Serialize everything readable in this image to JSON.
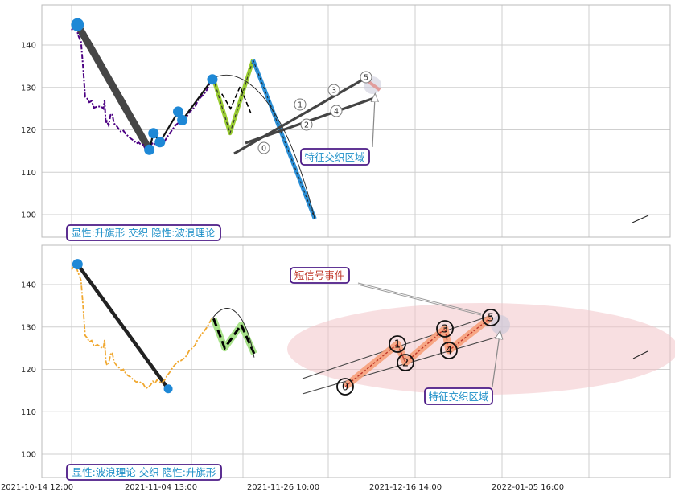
{
  "chart_data": [
    {
      "type": "line",
      "panel": "top",
      "ylim": [
        94,
        149
      ],
      "y_ticks": [
        100,
        110,
        120,
        130,
        140
      ],
      "annotation_box": "显性:升旗形 交织 隐性:波浪理论",
      "callout": "特征交织区域",
      "wave_labels": [
        "0",
        "1",
        "2",
        "3",
        "4",
        "5"
      ],
      "series": [
        {
          "role": "price",
          "color": "#4b0082",
          "values": [
            [
              0.0,
              143.5
            ],
            [
              0.6,
              145.0
            ],
            [
              1.2,
              142.0
            ],
            [
              1.6,
              140.8
            ],
            [
              2.0,
              134.0
            ],
            [
              2.3,
              127.8
            ],
            [
              2.6,
              127.5
            ],
            [
              3.0,
              126.5
            ],
            [
              3.4,
              126.8
            ],
            [
              3.8,
              125.2
            ],
            [
              4.4,
              125.5
            ],
            [
              5.0,
              125.5
            ],
            [
              5.4,
              125.0
            ],
            [
              5.6,
              127.0
            ],
            [
              5.8,
              121.5
            ],
            [
              6.0,
              122.0
            ],
            [
              6.3,
              121.0
            ],
            [
              6.6,
              123.5
            ],
            [
              6.9,
              123.8
            ],
            [
              7.2,
              121.5
            ],
            [
              7.6,
              121.0
            ],
            [
              8.0,
              120.2
            ],
            [
              8.4,
              119.5
            ],
            [
              8.8,
              119.8
            ],
            [
              9.2,
              119.0
            ],
            [
              9.6,
              118.5
            ],
            [
              10.0,
              118.0
            ],
            [
              10.5,
              117.5
            ],
            [
              11.0,
              116.8
            ],
            [
              11.4,
              117.0
            ],
            [
              11.8,
              116.5
            ],
            [
              12.2,
              116.5
            ],
            [
              12.6,
              115.2
            ],
            [
              13.0,
              115.8
            ],
            [
              13.4,
              116.2
            ],
            [
              13.8,
              117.0
            ],
            [
              14.2,
              116.5
            ],
            [
              14.5,
              117.2
            ],
            [
              14.8,
              117.0
            ],
            [
              15.0,
              117.0
            ],
            [
              15.3,
              116.8
            ],
            [
              15.8,
              117.3
            ],
            [
              16.2,
              118.3
            ],
            [
              16.6,
              119.0
            ],
            [
              17.2,
              120.2
            ],
            [
              17.6,
              121.0
            ],
            [
              18.0,
              121.5
            ],
            [
              18.5,
              121.8
            ],
            [
              19.0,
              122.2
            ],
            [
              19.5,
              123.0
            ],
            [
              20.0,
              124.2
            ],
            [
              20.5,
              124.8
            ],
            [
              21.0,
              125.5
            ],
            [
              21.4,
              126.8
            ],
            [
              22.0,
              127.8
            ],
            [
              22.5,
              128.5
            ],
            [
              23.0,
              129.5
            ],
            [
              23.4,
              130.8
            ],
            [
              23.8,
              131.8
            ],
            [
              24.2,
              131.2
            ]
          ]
        },
        {
          "role": "forecast_dashed",
          "color": "#000000",
          "values": [
            [
              25.5,
              128.5
            ],
            [
              27.0,
              125.0
            ],
            [
              28.6,
              130.2
            ],
            [
              30.5,
              123.7
            ]
          ]
        },
        {
          "role": "forecast_green",
          "color": "#9acd32",
          "values": [
            [
              24.1,
              132.0
            ],
            [
              26.9,
              119.2
            ],
            [
              30.8,
              136.5
            ]
          ]
        },
        {
          "role": "forecast_blue",
          "color": "#2b8fd6",
          "values": [
            [
              30.8,
              136.5
            ],
            [
              41.3,
              99.0
            ]
          ]
        }
      ],
      "pivots": [
        [
          1.0,
          144.8
        ],
        [
          13.2,
          115.3
        ],
        [
          13.9,
          119.2
        ],
        [
          15.0,
          117.1
        ],
        [
          18.1,
          124.3
        ],
        [
          18.8,
          122.3
        ],
        [
          23.9,
          131.9
        ]
      ],
      "arc": {
        "from": [
          24.0,
          132.2
        ],
        "apex": [
          27.5,
          132.5
        ],
        "to": [
          41.3,
          99.0
        ]
      }
    },
    {
      "type": "line",
      "panel": "bottom",
      "ylim": [
        94,
        149
      ],
      "y_ticks": [
        100,
        110,
        120,
        130,
        140
      ],
      "x_tick_labels": [
        "2021-10-14 12:00",
        "2021-11-04 13:00",
        "2021-11-26 10:00",
        "2021-12-16 14:00",
        "2022-01-05 16:00"
      ],
      "annotation_box": "显性:波浪理论 交织 隐性:升旗形",
      "callout": "特征交织区域",
      "callout2": "短信号事件",
      "wave_labels": [
        "0",
        "1",
        "2",
        "3",
        "4",
        "5"
      ],
      "series": [
        {
          "role": "price",
          "color": "#f0a830",
          "values": [
            [
              0.0,
              143.5
            ],
            [
              0.6,
              144.8
            ],
            [
              1.2,
              142.5
            ],
            [
              1.6,
              141.0
            ],
            [
              2.0,
              134.0
            ],
            [
              2.3,
              128.0
            ],
            [
              2.6,
              127.5
            ],
            [
              3.0,
              126.5
            ],
            [
              3.4,
              126.8
            ],
            [
              3.8,
              125.5
            ],
            [
              4.4,
              125.8
            ],
            [
              5.0,
              125.2
            ],
            [
              5.4,
              125.0
            ],
            [
              5.6,
              127.0
            ],
            [
              5.8,
              122.0
            ],
            [
              6.0,
              121.0
            ],
            [
              6.3,
              121.5
            ],
            [
              6.6,
              123.5
            ],
            [
              6.9,
              124.0
            ],
            [
              7.2,
              121.8
            ],
            [
              7.6,
              121.0
            ],
            [
              8.0,
              120.5
            ],
            [
              8.4,
              119.8
            ],
            [
              8.8,
              120.0
            ],
            [
              9.2,
              119.0
            ],
            [
              9.6,
              118.5
            ],
            [
              10.0,
              118.2
            ],
            [
              10.5,
              117.5
            ],
            [
              11.0,
              117.0
            ],
            [
              11.4,
              117.2
            ],
            [
              11.8,
              116.8
            ],
            [
              12.2,
              116.5
            ],
            [
              12.6,
              115.5
            ],
            [
              13.0,
              115.8
            ],
            [
              13.4,
              116.3
            ],
            [
              13.8,
              117.2
            ],
            [
              14.2,
              116.8
            ],
            [
              14.5,
              117.5
            ],
            [
              14.8,
              117.2
            ],
            [
              15.0,
              117.0
            ],
            [
              15.3,
              116.8
            ],
            [
              15.8,
              117.5
            ],
            [
              16.2,
              118.5
            ],
            [
              16.6,
              119.2
            ],
            [
              17.2,
              120.5
            ],
            [
              17.6,
              121.2
            ],
            [
              18.0,
              121.8
            ],
            [
              18.5,
              122.0
            ],
            [
              19.0,
              122.5
            ],
            [
              19.5,
              123.2
            ],
            [
              20.0,
              124.5
            ],
            [
              20.5,
              125.0
            ],
            [
              21.0,
              125.8
            ],
            [
              21.4,
              127.0
            ],
            [
              22.0,
              128.2
            ],
            [
              22.5,
              129.0
            ],
            [
              23.0,
              130.0
            ],
            [
              23.4,
              131.0
            ],
            [
              23.8,
              132.0
            ],
            [
              24.2,
              131.5
            ]
          ]
        },
        {
          "role": "forecast_dashed",
          "color": "#000000",
          "values": [
            [
              24.1,
              132.0
            ],
            [
              26.0,
              125.0
            ],
            [
              28.8,
              130.5
            ],
            [
              31.0,
              123.7
            ]
          ]
        },
        {
          "role": "forecast_green",
          "color": "#a8e28a",
          "values": [
            [
              24.1,
              132.0
            ],
            [
              26.0,
              125.0
            ],
            [
              28.8,
              130.5
            ],
            [
              31.0,
              123.7
            ]
          ]
        }
      ],
      "pivots": [
        [
          1.0,
          144.8
        ],
        [
          16.4,
          115.4
        ]
      ],
      "arc": {
        "from": [
          24.0,
          132.2
        ],
        "apex": [
          26.5,
          134.5
        ],
        "to": [
          31.0,
          122.8
        ]
      }
    }
  ]
}
